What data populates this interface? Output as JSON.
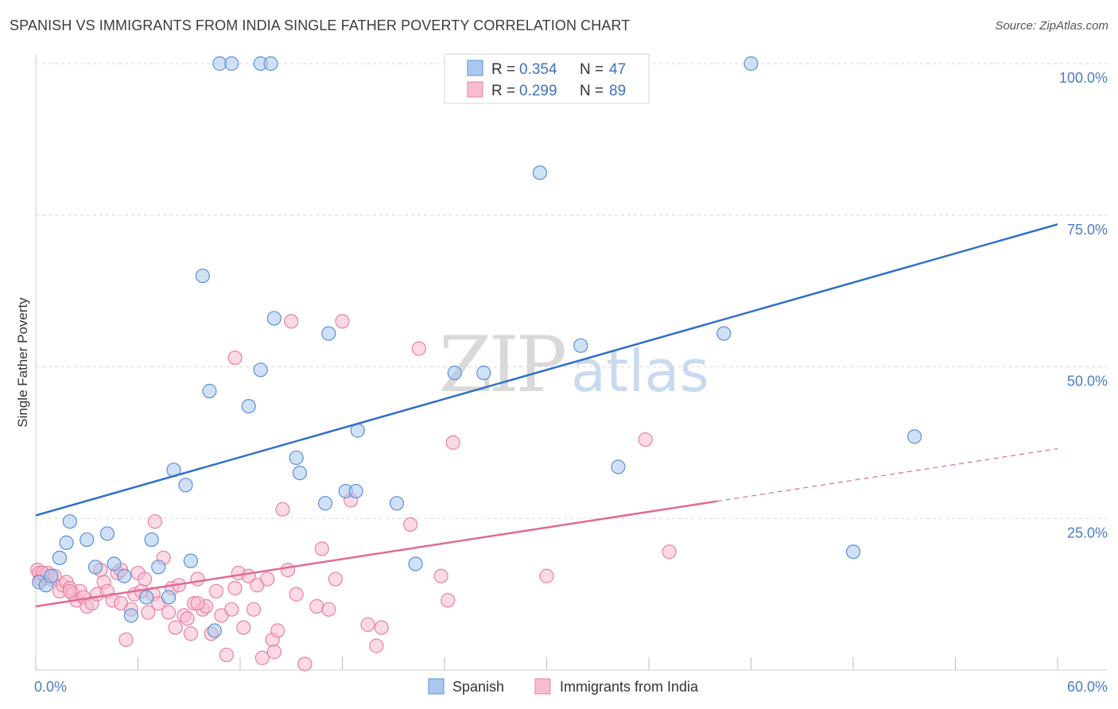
{
  "title": "SPANISH VS IMMIGRANTS FROM INDIA SINGLE FATHER POVERTY CORRELATION CHART",
  "source": "Source: ZipAtlas.com",
  "watermark": {
    "zip": "ZIP",
    "atlas": "atlas"
  },
  "colors": {
    "spanish_fill": "#aac8ee",
    "spanish_stroke": "#5b8fd6",
    "spanish_line": "#2f6fca",
    "india_fill": "#f7bcd0",
    "india_stroke": "#e8819f",
    "india_line": "#e06a94",
    "grid": "#d8d8d8",
    "axis_label": "#4a7cc9"
  },
  "legend": {
    "rows": [
      {
        "r_label": "R =",
        "r_value": "0.354",
        "n_label": "N =",
        "n_value": "47"
      },
      {
        "r_label": "R =",
        "r_value": "0.299",
        "n_label": "N =",
        "n_value": "89"
      }
    ]
  },
  "chart_data": {
    "type": "scatter",
    "title": "SPANISH VS IMMIGRANTS FROM INDIA SINGLE FATHER POVERTY CORRELATION CHART",
    "xlabel": "",
    "ylabel": "Single Father Poverty",
    "xlim": [
      0,
      60
    ],
    "ylim": [
      0,
      100
    ],
    "x_tick_labels": [
      "0.0%",
      "60.0%"
    ],
    "y_ticks": [
      25,
      50,
      75,
      100
    ],
    "y_tick_labels": [
      "25.0%",
      "50.0%",
      "75.0%",
      "100.0%"
    ],
    "grid": true,
    "legend_position": "top-center",
    "series": [
      {
        "name": "Spanish",
        "trend": {
          "x0": 0,
          "y0": 25.5,
          "x1": 60,
          "y1": 73.5,
          "dashed_from": null
        },
        "points": [
          [
            0.2,
            14.5
          ],
          [
            0.6,
            14
          ],
          [
            0.9,
            15.5
          ],
          [
            1.4,
            18.5
          ],
          [
            1.8,
            21
          ],
          [
            2.0,
            24.5
          ],
          [
            3.0,
            21.5
          ],
          [
            3.5,
            17
          ],
          [
            4.2,
            22.5
          ],
          [
            4.6,
            17.5
          ],
          [
            5.2,
            15.5
          ],
          [
            5.6,
            9
          ],
          [
            6.5,
            12
          ],
          [
            6.8,
            21.5
          ],
          [
            7.2,
            17
          ],
          [
            7.8,
            12
          ],
          [
            8.1,
            33
          ],
          [
            8.8,
            30.5
          ],
          [
            9.1,
            18
          ],
          [
            9.8,
            65
          ],
          [
            10.2,
            46
          ],
          [
            10.5,
            6.5
          ],
          [
            10.8,
            100
          ],
          [
            11.5,
            100
          ],
          [
            12.5,
            43.5
          ],
          [
            13.2,
            49.5
          ],
          [
            13.2,
            100
          ],
          [
            13.8,
            100
          ],
          [
            14.0,
            58
          ],
          [
            15.3,
            35
          ],
          [
            15.5,
            32.5
          ],
          [
            17.0,
            27.5
          ],
          [
            17.2,
            55.5
          ],
          [
            18.2,
            29.5
          ],
          [
            18.8,
            29.5
          ],
          [
            18.9,
            39.5
          ],
          [
            21.2,
            27.5
          ],
          [
            22.3,
            17.5
          ],
          [
            24.6,
            49
          ],
          [
            26.3,
            49
          ],
          [
            29.6,
            82
          ],
          [
            32.0,
            53.5
          ],
          [
            34.2,
            33.5
          ],
          [
            40.4,
            55.5
          ],
          [
            42.0,
            100
          ],
          [
            48.0,
            19.5
          ],
          [
            51.6,
            38.5
          ]
        ]
      },
      {
        "name": "Immigrants from India",
        "trend": {
          "x0": 0,
          "y0": 10.5,
          "x1": 60,
          "y1": 36.5,
          "dashed_from": 40
        },
        "points": [
          [
            0.1,
            16.5
          ],
          [
            0.2,
            16
          ],
          [
            0.3,
            15
          ],
          [
            0.5,
            15.5
          ],
          [
            0.7,
            16
          ],
          [
            0.9,
            15
          ],
          [
            1.1,
            15.5
          ],
          [
            1.4,
            13
          ],
          [
            1.6,
            14
          ],
          [
            1.8,
            14.5
          ],
          [
            2.0,
            13.5
          ],
          [
            2.2,
            12.5
          ],
          [
            2.4,
            11.5
          ],
          [
            2.6,
            13
          ],
          [
            2.8,
            12
          ],
          [
            3.0,
            10.5
          ],
          [
            3.3,
            11
          ],
          [
            3.6,
            12.5
          ],
          [
            3.8,
            16.5
          ],
          [
            4.0,
            14.5
          ],
          [
            4.2,
            13
          ],
          [
            4.5,
            11.5
          ],
          [
            4.8,
            16
          ],
          [
            5.0,
            11
          ],
          [
            5.3,
            5
          ],
          [
            5.6,
            10
          ],
          [
            5.8,
            12.5
          ],
          [
            6.0,
            16
          ],
          [
            6.2,
            13
          ],
          [
            6.4,
            15
          ],
          [
            6.6,
            9.5
          ],
          [
            6.9,
            12.5
          ],
          [
            7.0,
            24.5
          ],
          [
            7.2,
            11
          ],
          [
            7.5,
            18.5
          ],
          [
            7.8,
            9.5
          ],
          [
            8.0,
            13.5
          ],
          [
            8.2,
            7
          ],
          [
            8.4,
            14
          ],
          [
            8.7,
            9
          ],
          [
            8.9,
            8.5
          ],
          [
            9.1,
            6
          ],
          [
            9.3,
            11
          ],
          [
            9.5,
            15
          ],
          [
            9.8,
            10
          ],
          [
            10.0,
            10.5
          ],
          [
            10.3,
            6
          ],
          [
            10.6,
            13
          ],
          [
            10.9,
            9
          ],
          [
            11.2,
            2.5
          ],
          [
            11.5,
            10
          ],
          [
            11.7,
            13.5
          ],
          [
            11.9,
            16
          ],
          [
            12.2,
            7
          ],
          [
            12.5,
            15.5
          ],
          [
            12.8,
            10
          ],
          [
            13.0,
            14
          ],
          [
            13.3,
            2
          ],
          [
            13.6,
            15
          ],
          [
            13.9,
            5
          ],
          [
            14.2,
            6.5
          ],
          [
            14.5,
            26.5
          ],
          [
            14.8,
            16.5
          ],
          [
            15.0,
            57.5
          ],
          [
            15.3,
            12.5
          ],
          [
            15.8,
            1
          ],
          [
            16.5,
            10.5
          ],
          [
            16.8,
            20
          ],
          [
            17.2,
            10
          ],
          [
            17.6,
            15
          ],
          [
            18.0,
            57.5
          ],
          [
            18.5,
            28
          ],
          [
            19.5,
            7.5
          ],
          [
            20.0,
            4
          ],
          [
            20.3,
            7
          ],
          [
            22.0,
            24
          ],
          [
            22.5,
            53
          ],
          [
            23.8,
            15.5
          ],
          [
            24.2,
            11.5
          ],
          [
            24.5,
            37.5
          ],
          [
            30.0,
            15.5
          ],
          [
            35.8,
            38
          ],
          [
            37.2,
            19.5
          ],
          [
            11.7,
            51.5
          ],
          [
            2.0,
            13
          ],
          [
            9.5,
            11
          ],
          [
            14.0,
            3
          ],
          [
            5.0,
            16.5
          ],
          [
            0.4,
            16
          ]
        ]
      }
    ]
  },
  "bottom_legend": [
    "Spanish",
    "Immigrants from India"
  ]
}
